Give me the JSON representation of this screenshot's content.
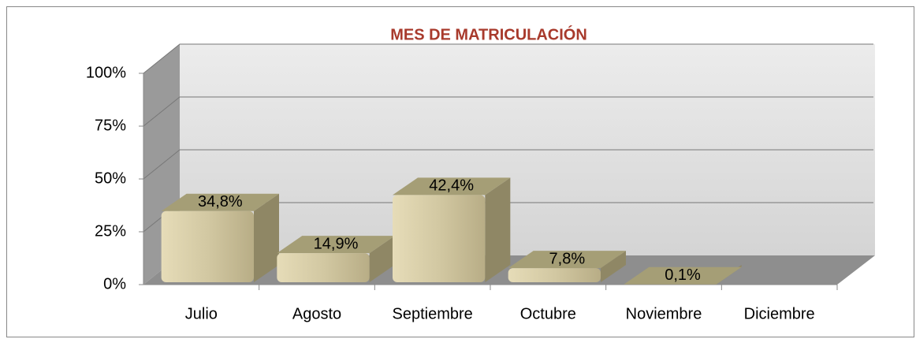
{
  "chart_data": {
    "type": "bar3d",
    "title": "MES DE MATRICULACIÓN",
    "categories": [
      "Julio",
      "Agosto",
      "Septiembre",
      "Octubre",
      "Noviembre",
      "Diciembre"
    ],
    "values": [
      34.8,
      14.9,
      42.4,
      7.8,
      0.1,
      null
    ],
    "value_labels": [
      "34,8%",
      "14,9%",
      "42,4%",
      "7,8%",
      "0,1%",
      null
    ],
    "color": "#cfc5a0",
    "ylim": [
      0,
      100
    ],
    "yticks": [
      {
        "value": 0,
        "label": "0%"
      },
      {
        "value": 25,
        "label": "25%"
      },
      {
        "value": 50,
        "label": "50%"
      },
      {
        "value": 75,
        "label": "75%"
      },
      {
        "value": 100,
        "label": "100%"
      }
    ],
    "grid": true
  }
}
